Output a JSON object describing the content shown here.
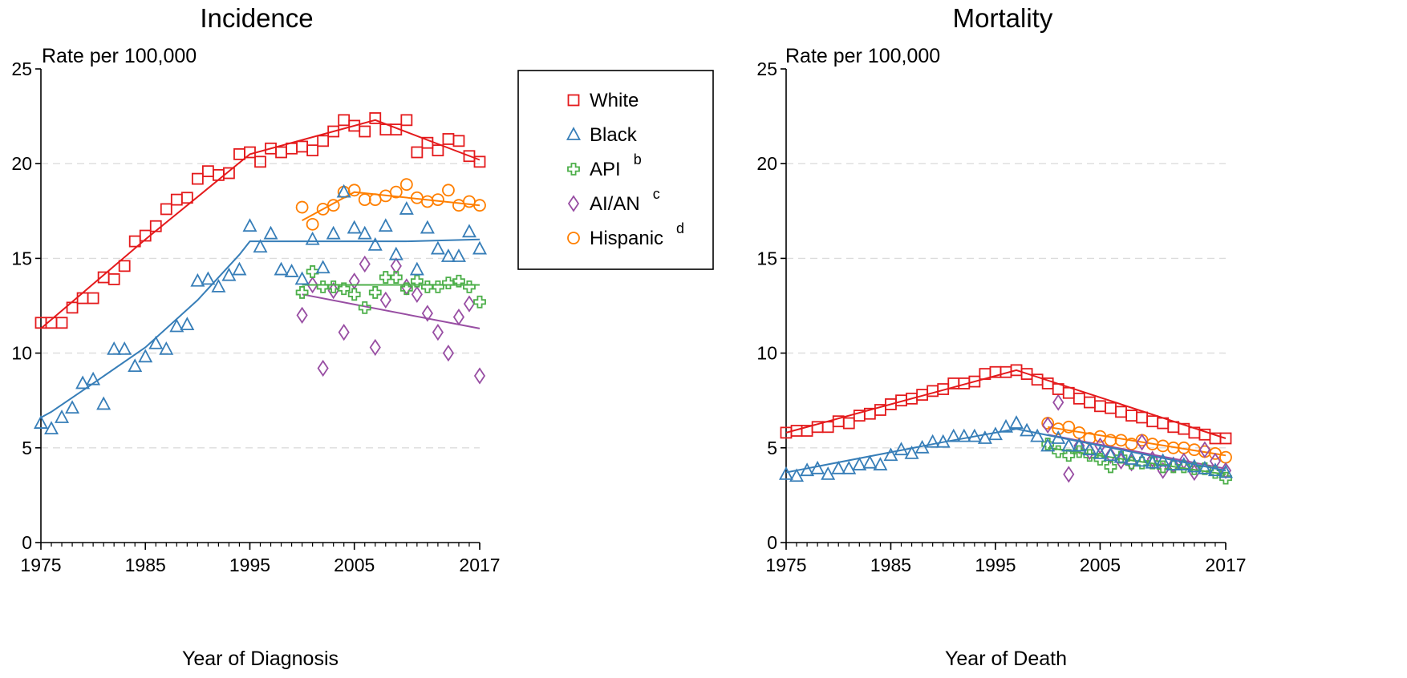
{
  "colors": {
    "White": "#e41a1c",
    "Black": "#377eb8",
    "API": "#4daf4a",
    "AI/AN": "#984ea3",
    "Hispanic": "#ff7f00"
  },
  "legend": {
    "items": [
      {
        "name": "White",
        "sup": "",
        "marker": "square"
      },
      {
        "name": "Black",
        "sup": "",
        "marker": "triangle"
      },
      {
        "name": "API",
        "sup": "b",
        "marker": "cross"
      },
      {
        "name": "AI/AN",
        "sup": "c",
        "marker": "diamond"
      },
      {
        "name": "Hispanic",
        "sup": "d",
        "marker": "circle"
      }
    ]
  },
  "chart_data": [
    {
      "type": "scatter",
      "title": "Incidence",
      "xlabel": "Year of Diagnosis",
      "ylabel": "Rate per 100,000",
      "xlim": [
        1975,
        2017
      ],
      "ylim": [
        0,
        25
      ],
      "xticks": [
        1975,
        1985,
        1995,
        2005,
        2017
      ],
      "yticks": [
        0,
        5,
        10,
        15,
        20,
        25
      ],
      "grid": "horizontal dashed",
      "series": [
        {
          "name": "White",
          "marker": "square",
          "x": [
            1975,
            1976,
            1977,
            1978,
            1979,
            1980,
            1981,
            1982,
            1983,
            1984,
            1985,
            1986,
            1987,
            1988,
            1989,
            1990,
            1991,
            1992,
            1993,
            1994,
            1995,
            1996,
            1997,
            1998,
            1999,
            2000,
            2001,
            2002,
            2003,
            2004,
            2005,
            2006,
            2007,
            2008,
            2009,
            2010,
            2011,
            2012,
            2013,
            2014,
            2015,
            2016,
            2017
          ],
          "y": [
            11.6,
            11.6,
            11.6,
            12.4,
            12.9,
            12.9,
            14.0,
            13.9,
            14.6,
            15.9,
            16.2,
            16.7,
            17.6,
            18.1,
            18.2,
            19.2,
            19.6,
            19.4,
            19.5,
            20.5,
            20.6,
            20.1,
            20.8,
            20.6,
            20.8,
            20.9,
            20.7,
            21.2,
            21.7,
            22.3,
            22.0,
            21.7,
            22.4,
            21.8,
            21.8,
            22.3,
            20.6,
            21.1,
            20.7,
            21.3,
            21.2,
            20.4,
            20.1
          ],
          "fit_x": [
            1975,
            1985,
            1995,
            2007,
            2017
          ],
          "fit_y": [
            11.3,
            16.0,
            20.5,
            22.3,
            20.2
          ]
        },
        {
          "name": "Black",
          "marker": "triangle",
          "x": [
            1975,
            1976,
            1977,
            1978,
            1979,
            1980,
            1981,
            1982,
            1983,
            1984,
            1985,
            1986,
            1987,
            1988,
            1989,
            1990,
            1991,
            1992,
            1993,
            1994,
            1995,
            1996,
            1997,
            1998,
            1999,
            2000,
            2001,
            2002,
            2003,
            2004,
            2005,
            2006,
            2007,
            2008,
            2009,
            2010,
            2011,
            2012,
            2013,
            2014,
            2015,
            2016,
            2017
          ],
          "y": [
            6.3,
            6.0,
            6.6,
            7.1,
            8.4,
            8.6,
            7.3,
            10.2,
            10.2,
            9.3,
            9.8,
            10.5,
            10.2,
            11.4,
            11.5,
            13.8,
            13.9,
            13.5,
            14.1,
            14.4,
            16.7,
            15.6,
            16.3,
            14.4,
            14.3,
            13.9,
            16.0,
            14.5,
            16.3,
            18.5,
            16.6,
            16.3,
            15.7,
            16.7,
            15.2,
            17.6,
            14.4,
            16.6,
            15.5,
            15.1,
            15.1,
            16.4,
            15.5
          ],
          "fit_x": [
            1975,
            1976,
            1980,
            1985,
            1990,
            1994,
            1995,
            2010,
            2017
          ],
          "fit_y": [
            6.6,
            6.9,
            8.4,
            10.3,
            12.8,
            15.2,
            15.9,
            15.9,
            16.0
          ]
        },
        {
          "name": "API",
          "marker": "cross",
          "x": [
            2000,
            2001,
            2002,
            2003,
            2004,
            2005,
            2006,
            2007,
            2008,
            2009,
            2010,
            2011,
            2012,
            2013,
            2014,
            2015,
            2016,
            2017
          ],
          "y": [
            13.2,
            14.3,
            13.5,
            13.5,
            13.4,
            13.1,
            12.4,
            13.2,
            14.0,
            14.0,
            13.4,
            13.8,
            13.5,
            13.5,
            13.7,
            13.8,
            13.5,
            12.7
          ],
          "fit_x": [
            2000,
            2017
          ],
          "fit_y": [
            13.6,
            13.6
          ]
        },
        {
          "name": "AI/AN",
          "marker": "diamond",
          "x": [
            2000,
            2001,
            2002,
            2003,
            2004,
            2005,
            2006,
            2007,
            2008,
            2009,
            2010,
            2011,
            2012,
            2013,
            2014,
            2015,
            2016,
            2017
          ],
          "y": [
            12.0,
            13.6,
            9.2,
            13.3,
            11.1,
            13.8,
            14.7,
            10.3,
            12.8,
            14.6,
            13.5,
            13.1,
            12.1,
            11.1,
            10.0,
            11.9,
            12.6,
            8.8
          ],
          "fit_x": [
            2000,
            2017
          ],
          "fit_y": [
            13.1,
            11.3
          ]
        },
        {
          "name": "Hispanic",
          "marker": "circle",
          "x": [
            2000,
            2001,
            2002,
            2003,
            2004,
            2005,
            2006,
            2007,
            2008,
            2009,
            2010,
            2011,
            2012,
            2013,
            2014,
            2015,
            2016,
            2017
          ],
          "y": [
            17.7,
            16.8,
            17.6,
            17.8,
            18.5,
            18.6,
            18.1,
            18.1,
            18.3,
            18.5,
            18.9,
            18.2,
            18.0,
            18.1,
            18.6,
            17.8,
            18.0,
            17.8
          ],
          "fit_x": [
            2000,
            2005,
            2017
          ],
          "fit_y": [
            17.0,
            18.5,
            17.8
          ]
        }
      ]
    },
    {
      "type": "scatter",
      "title": "Mortality",
      "xlabel": "Year of Death",
      "ylabel": "Rate per 100,000",
      "xlim": [
        1975,
        2017
      ],
      "ylim": [
        0,
        25
      ],
      "xticks": [
        1975,
        1985,
        1995,
        2005,
        2017
      ],
      "yticks": [
        0,
        5,
        10,
        15,
        20,
        25
      ],
      "grid": "horizontal dashed",
      "series": [
        {
          "name": "White",
          "marker": "square",
          "x": [
            1975,
            1976,
            1977,
            1978,
            1979,
            1980,
            1981,
            1982,
            1983,
            1984,
            1985,
            1986,
            1987,
            1988,
            1989,
            1990,
            1991,
            1992,
            1993,
            1994,
            1995,
            1996,
            1997,
            1998,
            1999,
            2000,
            2001,
            2002,
            2003,
            2004,
            2005,
            2006,
            2007,
            2008,
            2009,
            2010,
            2011,
            2012,
            2013,
            2014,
            2015,
            2016,
            2017
          ],
          "y": [
            5.8,
            5.9,
            5.9,
            6.1,
            6.1,
            6.4,
            6.3,
            6.7,
            6.8,
            7.0,
            7.3,
            7.5,
            7.6,
            7.8,
            8.0,
            8.1,
            8.4,
            8.4,
            8.5,
            8.9,
            9.0,
            9.0,
            9.1,
            8.9,
            8.6,
            8.4,
            8.1,
            7.9,
            7.6,
            7.4,
            7.2,
            7.1,
            6.9,
            6.7,
            6.6,
            6.4,
            6.3,
            6.1,
            6.0,
            5.8,
            5.7,
            5.5,
            5.5
          ],
          "fit_x": [
            1975,
            1997,
            2017
          ],
          "fit_y": [
            5.8,
            9.1,
            5.5
          ]
        },
        {
          "name": "Black",
          "marker": "triangle",
          "x": [
            1975,
            1976,
            1977,
            1978,
            1979,
            1980,
            1981,
            1982,
            1983,
            1984,
            1985,
            1986,
            1987,
            1988,
            1989,
            1990,
            1991,
            1992,
            1993,
            1994,
            1995,
            1996,
            1997,
            1998,
            1999,
            2000,
            2001,
            2002,
            2003,
            2004,
            2005,
            2006,
            2007,
            2008,
            2009,
            2010,
            2011,
            2012,
            2013,
            2014,
            2015,
            2016,
            2017
          ],
          "y": [
            3.6,
            3.5,
            3.8,
            3.9,
            3.6,
            3.9,
            3.9,
            4.1,
            4.2,
            4.1,
            4.6,
            4.9,
            4.7,
            5.0,
            5.3,
            5.3,
            5.6,
            5.6,
            5.6,
            5.5,
            5.7,
            6.1,
            6.3,
            5.9,
            5.6,
            5.1,
            5.5,
            5.1,
            5.1,
            4.9,
            4.7,
            4.6,
            4.5,
            4.4,
            4.3,
            4.2,
            4.3,
            4.1,
            4.1,
            4.0,
            3.9,
            3.8,
            3.7
          ],
          "fit_x": [
            1975,
            1990,
            1997,
            2017
          ],
          "fit_y": [
            3.7,
            5.3,
            6.0,
            3.8
          ]
        },
        {
          "name": "API",
          "marker": "cross",
          "x": [
            2000,
            2001,
            2002,
            2003,
            2004,
            2005,
            2006,
            2007,
            2008,
            2009,
            2010,
            2011,
            2012,
            2013,
            2014,
            2015,
            2016,
            2017
          ],
          "y": [
            5.2,
            4.8,
            4.6,
            4.8,
            4.6,
            4.4,
            4.0,
            4.5,
            4.2,
            4.2,
            4.2,
            4.0,
            4.0,
            4.0,
            3.9,
            3.9,
            3.7,
            3.4
          ],
          "fit_x": [
            2000,
            2017
          ],
          "fit_y": [
            5.0,
            3.6
          ]
        },
        {
          "name": "AI/AN",
          "marker": "diamond",
          "x": [
            2000,
            2001,
            2002,
            2003,
            2004,
            2005,
            2006,
            2007,
            2008,
            2009,
            2010,
            2011,
            2012,
            2013,
            2014,
            2015,
            2016,
            2017
          ],
          "y": [
            6.2,
            7.4,
            3.6,
            5.1,
            4.8,
            5.1,
            4.6,
            4.3,
            4.2,
            5.3,
            4.4,
            3.8,
            4.1,
            4.3,
            3.7,
            4.9,
            4.3,
            3.8
          ],
          "fit_x": [
            2000,
            2017
          ],
          "fit_y": [
            5.7,
            3.9
          ]
        },
        {
          "name": "Hispanic",
          "marker": "circle",
          "x": [
            2000,
            2001,
            2002,
            2003,
            2004,
            2005,
            2006,
            2007,
            2008,
            2009,
            2010,
            2011,
            2012,
            2013,
            2014,
            2015,
            2016,
            2017
          ],
          "y": [
            6.3,
            6.0,
            6.1,
            5.8,
            5.5,
            5.6,
            5.4,
            5.4,
            5.2,
            5.4,
            5.2,
            5.1,
            5.0,
            5.0,
            4.9,
            4.8,
            4.7,
            4.5
          ],
          "fit_x": [
            2000,
            2017
          ],
          "fit_y": [
            6.1,
            4.6
          ]
        }
      ]
    }
  ]
}
